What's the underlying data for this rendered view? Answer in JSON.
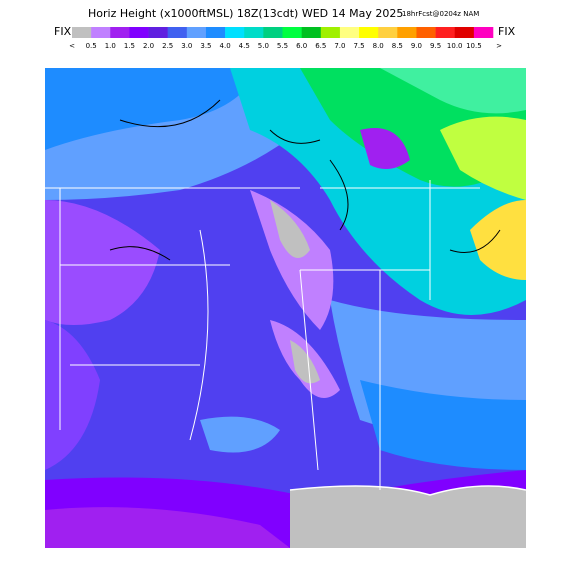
{
  "header": {
    "title": "Horiz Height (x1000ftMSL) 18Z(13cdt) WED 14 May 2025",
    "forecast": "18hrFcst@0204z NAM"
  },
  "legend": {
    "left": "FIX",
    "right": "FIX",
    "below": "<",
    "above": ">",
    "swatches": [
      "#c0c0c0",
      "#c080ff",
      "#a020f0",
      "#8000ff",
      "#6020e0",
      "#4060f0",
      "#60a0ff",
      "#1e8cff",
      "#00e0ff",
      "#00dcc8",
      "#00d080",
      "#00ff40",
      "#00c020",
      "#a0f000",
      "#ffff80",
      "#ffff00",
      "#ffd040",
      "#ffa000",
      "#ff6000",
      "#ff2020",
      "#e00000",
      "#ff00c0"
    ],
    "labels": [
      "0.5",
      "1.0",
      "1.5",
      "2.0",
      "2.5",
      "3.0",
      "3.5",
      "4.0",
      "4.5",
      "5.0",
      "5.5",
      "6.0",
      "6.5",
      "7.0",
      "7.5",
      "8.0",
      "8.5",
      "9.0",
      "9.5",
      "10.0",
      "10.5"
    ]
  }
}
